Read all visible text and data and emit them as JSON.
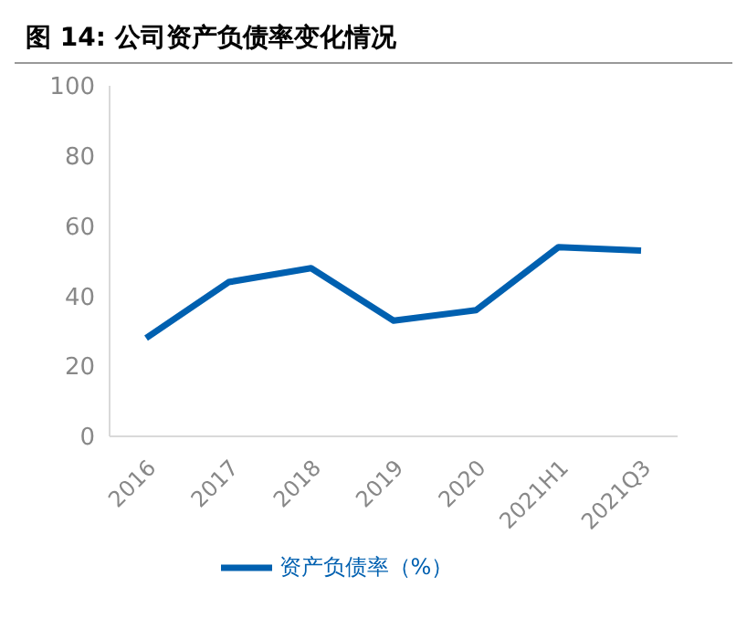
{
  "chart_data": {
    "type": "line",
    "title": "图 14: 公司资产负债率变化情况",
    "categories": [
      "2016",
      "2017",
      "2018",
      "2019",
      "2020",
      "2021H1",
      "2021Q3"
    ],
    "series": [
      {
        "name": "资产负债率（%）",
        "color": "#0060b0",
        "values": [
          28,
          44,
          48,
          33,
          36,
          54,
          53
        ]
      }
    ],
    "ylim": [
      0,
      100
    ],
    "yticks": [
      0,
      20,
      40,
      60,
      80,
      100
    ],
    "grid": false,
    "legend": "bottom",
    "marker": "none",
    "line_style": "solid"
  }
}
